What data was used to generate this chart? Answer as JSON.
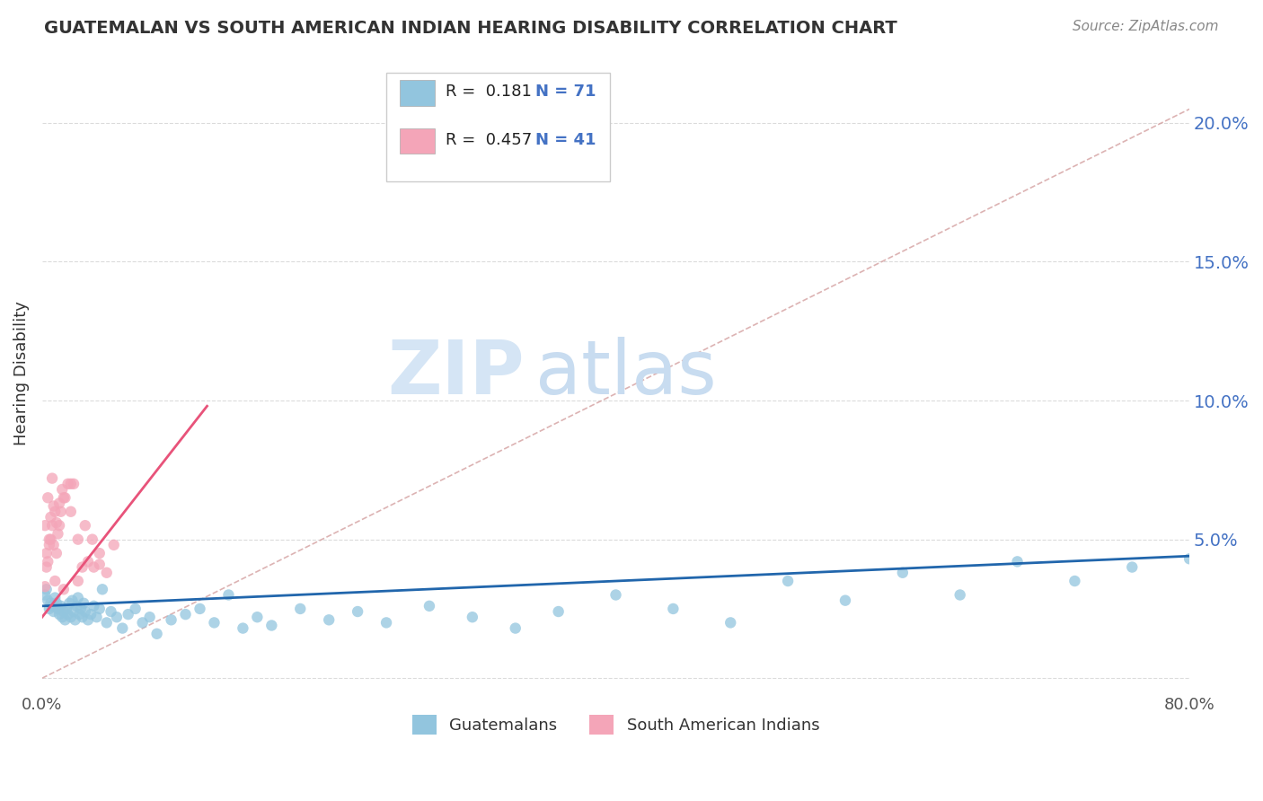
{
  "title": "GUATEMALAN VS SOUTH AMERICAN INDIAN HEARING DISABILITY CORRELATION CHART",
  "source": "Source: ZipAtlas.com",
  "ylabel": "Hearing Disability",
  "xlim": [
    0.0,
    0.8
  ],
  "ylim": [
    -0.005,
    0.225
  ],
  "yticks": [
    0.0,
    0.05,
    0.1,
    0.15,
    0.2
  ],
  "xticks": [
    0.0,
    0.8
  ],
  "blue_R": 0.181,
  "blue_N": 71,
  "pink_R": 0.457,
  "pink_N": 41,
  "blue_color": "#92C5DE",
  "pink_color": "#F4A5B8",
  "blue_line_color": "#2166AC",
  "pink_line_color": "#E8537A",
  "ref_line_color": "#D4A0A0",
  "watermark_color": "#D5E5F5",
  "background_color": "#ffffff",
  "legend_label_blue": "Guatemalans",
  "legend_label_pink": "South American Indians",
  "blue_trend_x0": 0.0,
  "blue_trend_y0": 0.026,
  "blue_trend_x1": 0.8,
  "blue_trend_y1": 0.044,
  "pink_trend_x0": 0.0,
  "pink_trend_y0": 0.022,
  "pink_trend_x1": 0.115,
  "pink_trend_y1": 0.098,
  "ref_line_x0": 0.0,
  "ref_line_y0": 0.0,
  "ref_line_x1": 0.8,
  "ref_line_y1": 0.205,
  "blue_scatter_x": [
    0.002,
    0.003,
    0.004,
    0.005,
    0.006,
    0.007,
    0.008,
    0.009,
    0.01,
    0.011,
    0.012,
    0.013,
    0.014,
    0.015,
    0.016,
    0.017,
    0.018,
    0.019,
    0.02,
    0.021,
    0.022,
    0.023,
    0.024,
    0.025,
    0.026,
    0.027,
    0.028,
    0.029,
    0.03,
    0.032,
    0.034,
    0.036,
    0.038,
    0.04,
    0.042,
    0.045,
    0.048,
    0.052,
    0.056,
    0.06,
    0.065,
    0.07,
    0.075,
    0.08,
    0.09,
    0.1,
    0.11,
    0.12,
    0.13,
    0.14,
    0.15,
    0.16,
    0.18,
    0.2,
    0.22,
    0.24,
    0.27,
    0.3,
    0.33,
    0.36,
    0.4,
    0.44,
    0.48,
    0.52,
    0.56,
    0.6,
    0.64,
    0.68,
    0.72,
    0.76,
    0.8
  ],
  "blue_scatter_y": [
    0.03,
    0.032,
    0.028,
    0.025,
    0.027,
    0.026,
    0.024,
    0.029,
    0.027,
    0.025,
    0.023,
    0.026,
    0.022,
    0.024,
    0.021,
    0.025,
    0.023,
    0.027,
    0.022,
    0.028,
    0.024,
    0.021,
    0.026,
    0.029,
    0.023,
    0.025,
    0.022,
    0.027,
    0.024,
    0.021,
    0.023,
    0.026,
    0.022,
    0.025,
    0.032,
    0.02,
    0.024,
    0.022,
    0.018,
    0.023,
    0.025,
    0.02,
    0.022,
    0.016,
    0.021,
    0.023,
    0.025,
    0.02,
    0.03,
    0.018,
    0.022,
    0.019,
    0.025,
    0.021,
    0.024,
    0.02,
    0.026,
    0.022,
    0.018,
    0.024,
    0.03,
    0.025,
    0.02,
    0.035,
    0.028,
    0.038,
    0.03,
    0.042,
    0.035,
    0.04,
    0.043
  ],
  "pink_scatter_x": [
    0.002,
    0.003,
    0.004,
    0.005,
    0.006,
    0.007,
    0.008,
    0.009,
    0.01,
    0.011,
    0.012,
    0.013,
    0.014,
    0.015,
    0.016,
    0.018,
    0.02,
    0.022,
    0.025,
    0.028,
    0.032,
    0.036,
    0.04,
    0.045,
    0.002,
    0.003,
    0.004,
    0.005,
    0.006,
    0.007,
    0.008,
    0.009,
    0.01,
    0.012,
    0.015,
    0.02,
    0.025,
    0.03,
    0.035,
    0.04,
    0.05
  ],
  "pink_scatter_y": [
    0.033,
    0.045,
    0.042,
    0.048,
    0.05,
    0.055,
    0.048,
    0.06,
    0.056,
    0.052,
    0.063,
    0.06,
    0.068,
    0.032,
    0.065,
    0.07,
    0.07,
    0.07,
    0.035,
    0.04,
    0.042,
    0.04,
    0.041,
    0.038,
    0.055,
    0.04,
    0.065,
    0.05,
    0.058,
    0.072,
    0.062,
    0.035,
    0.045,
    0.055,
    0.065,
    0.06,
    0.05,
    0.055,
    0.05,
    0.045,
    0.048
  ]
}
